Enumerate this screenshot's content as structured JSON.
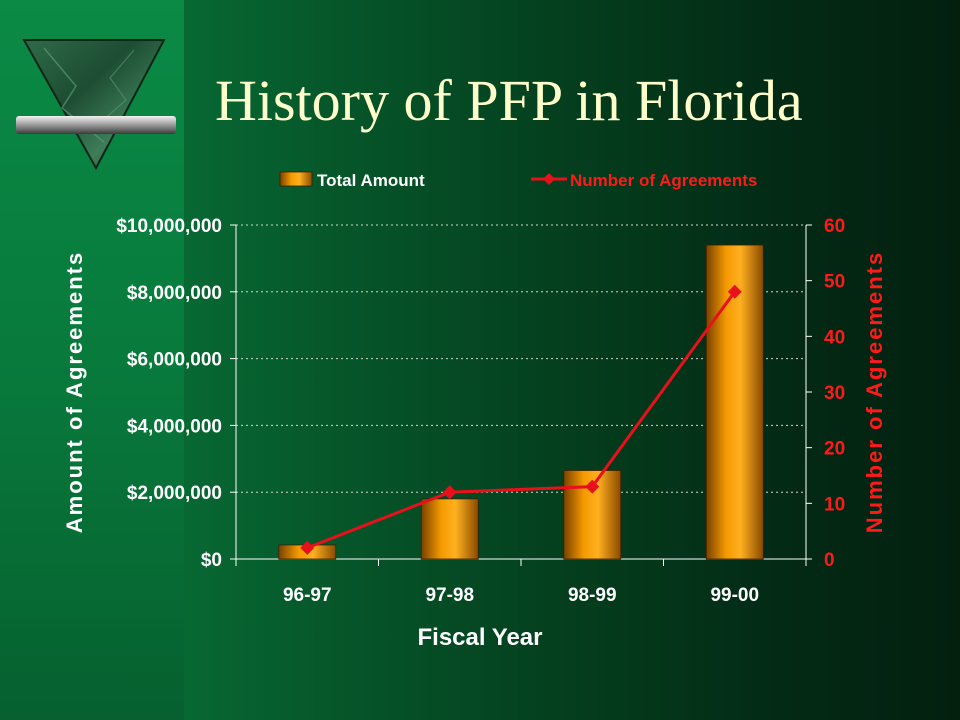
{
  "slide": {
    "title": "History of PFP in Florida"
  },
  "logo": {
    "icon": "green-marble-triangle-icon"
  },
  "chart_data": {
    "type": "bar",
    "categories": [
      "96-97",
      "97-98",
      "98-99",
      "99-00"
    ],
    "series": [
      {
        "name": "Total Amount",
        "type": "bar",
        "axis": "left",
        "color": "#f39200",
        "values": [
          420000,
          1800000,
          2650000,
          9400000
        ]
      },
      {
        "name": "Number of Agreements",
        "type": "line",
        "axis": "right",
        "color": "#e8101a",
        "values": [
          2,
          12,
          13,
          48
        ]
      }
    ],
    "xlabel": "Fiscal Year",
    "ylabel": "Amount of Agreements",
    "y2label": "Number of Agreements",
    "ylim": [
      0,
      10000000
    ],
    "y2lim": [
      0,
      60
    ],
    "yticks": [
      "$0",
      "$2,000,000",
      "$4,000,000",
      "$6,000,000",
      "$8,000,000",
      "$10,000,000"
    ],
    "y2ticks": [
      "0",
      "10",
      "20",
      "30",
      "40",
      "50",
      "60"
    ],
    "grid": true,
    "legend_position": "top"
  }
}
